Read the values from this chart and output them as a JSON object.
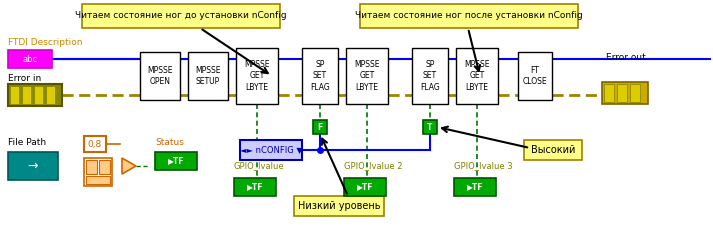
{
  "bg_color": "#ffffff",
  "label1": "Читаем состояние ног до установки nConfig",
  "label2": "Читаем состояние ног после установки nConfig",
  "label_nizkiy": "Низкий уровень",
  "label_vysokiy": "Высокий",
  "label_ftdi": "FTDI Description",
  "label_errin": "Error in",
  "label_errout": "Error out",
  "label_filepath": "File Path",
  "label_status": "Status",
  "label_gpio1": "GPIO_Ivalue",
  "label_gpio2": "GPIO_Ivalue 2",
  "label_gpio3": "GPIO_Ivalue 3",
  "label_nconfig": "◄► nCONFIG ▼",
  "wire_blue": "#0000ff",
  "wire_yellow": "#9b8600",
  "wire_green": "#007700",
  "wire_orange": "#cc6600",
  "block_border": "#000000",
  "block_fill": "#ffffff",
  "yellow_bg": "#ffff88",
  "yellow_border": "#a08000",
  "tf_fill": "#00aa00",
  "tf_border": "#005500",
  "pink_fill": "#ff00ff",
  "pink_border": "#cc00cc",
  "teal_fill": "#008888",
  "teal_border": "#005555",
  "orange_color": "#cc6600",
  "olive_fill": "#888800",
  "olive_border": "#555500",
  "bool_green": "#00aa00",
  "bool_border": "#005500"
}
